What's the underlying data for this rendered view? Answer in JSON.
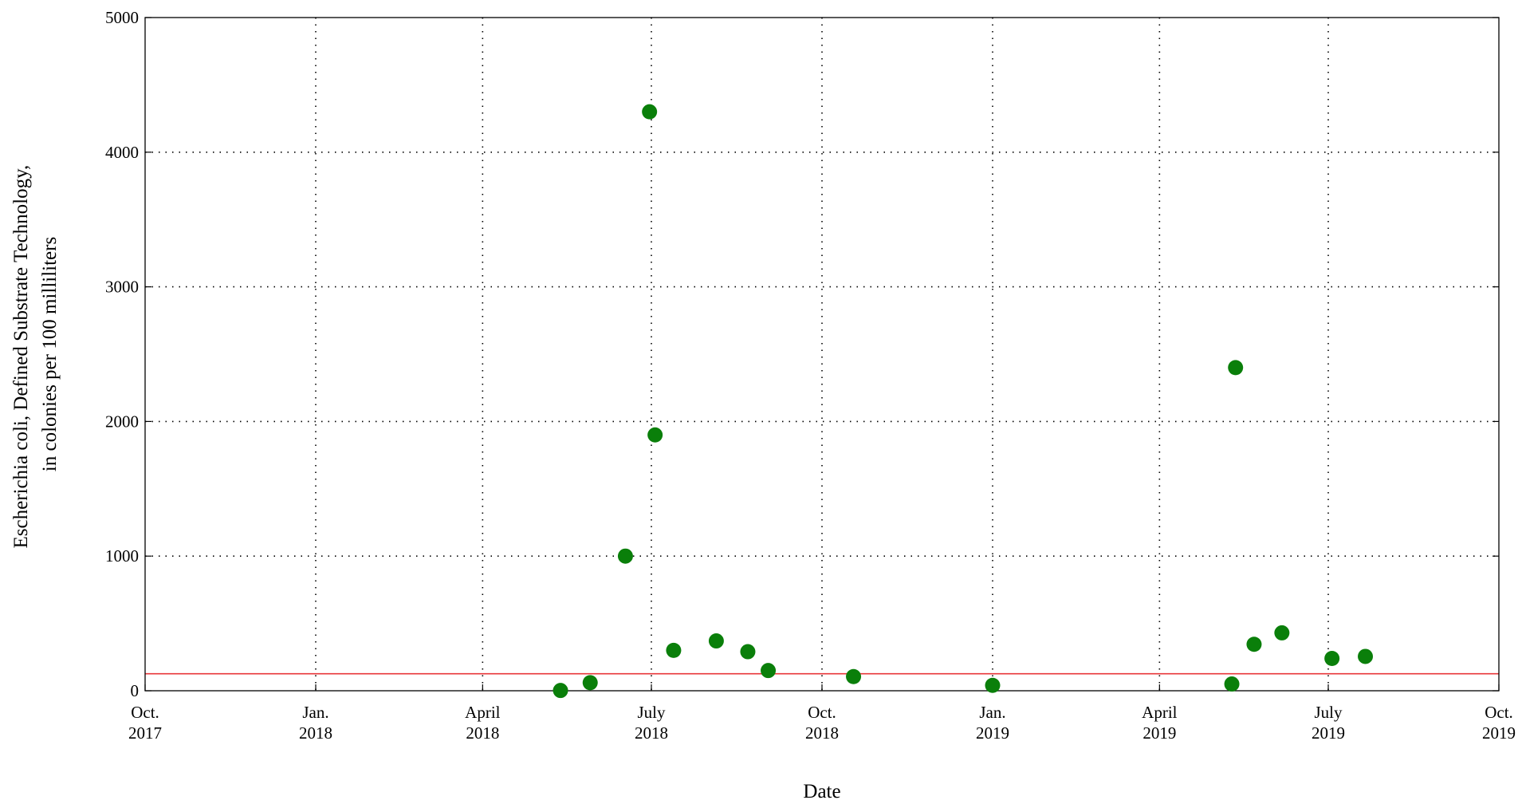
{
  "chart_data": {
    "type": "scatter",
    "title": "",
    "xlabel": "Date",
    "ylabel_lines": [
      "Escherichia coli, Defined Substrate Technology,",
      "in colonies per 100 milliliters"
    ],
    "xlim": [
      "2017-10-01",
      "2019-10-01"
    ],
    "ylim": [
      0,
      5000
    ],
    "grid": true,
    "legend": "none",
    "x_ticks": [
      {
        "date": "2017-10-01",
        "line1": "Oct.",
        "line2": "2017"
      },
      {
        "date": "2018-01-01",
        "line1": "Jan.",
        "line2": "2018"
      },
      {
        "date": "2018-04-01",
        "line1": "April",
        "line2": "2018"
      },
      {
        "date": "2018-07-01",
        "line1": "July",
        "line2": "2018"
      },
      {
        "date": "2018-10-01",
        "line1": "Oct.",
        "line2": "2018"
      },
      {
        "date": "2019-01-01",
        "line1": "Jan.",
        "line2": "2019"
      },
      {
        "date": "2019-04-01",
        "line1": "April",
        "line2": "2019"
      },
      {
        "date": "2019-07-01",
        "line1": "July",
        "line2": "2019"
      },
      {
        "date": "2019-10-01",
        "line1": "Oct.",
        "line2": "2019"
      }
    ],
    "y_ticks": [
      0,
      1000,
      2000,
      3000,
      4000,
      5000
    ],
    "reference_line": {
      "y": 126,
      "color": "#e8373a"
    },
    "marker_color": "#0a7f0a",
    "series": [
      {
        "points": [
          {
            "x": "2018-05-13",
            "y": 2
          },
          {
            "x": "2018-05-29",
            "y": 60
          },
          {
            "x": "2018-06-17",
            "y": 1000
          },
          {
            "x": "2018-06-30",
            "y": 4300
          },
          {
            "x": "2018-07-03",
            "y": 1900
          },
          {
            "x": "2018-07-13",
            "y": 300
          },
          {
            "x": "2018-08-05",
            "y": 370
          },
          {
            "x": "2018-08-22",
            "y": 290
          },
          {
            "x": "2018-09-02",
            "y": 150
          },
          {
            "x": "2018-10-18",
            "y": 105
          },
          {
            "x": "2019-01-01",
            "y": 40
          },
          {
            "x": "2019-05-10",
            "y": 50
          },
          {
            "x": "2019-05-12",
            "y": 2400
          },
          {
            "x": "2019-05-22",
            "y": 345
          },
          {
            "x": "2019-06-06",
            "y": 430
          },
          {
            "x": "2019-07-03",
            "y": 240
          },
          {
            "x": "2019-07-21",
            "y": 255
          }
        ]
      }
    ]
  }
}
